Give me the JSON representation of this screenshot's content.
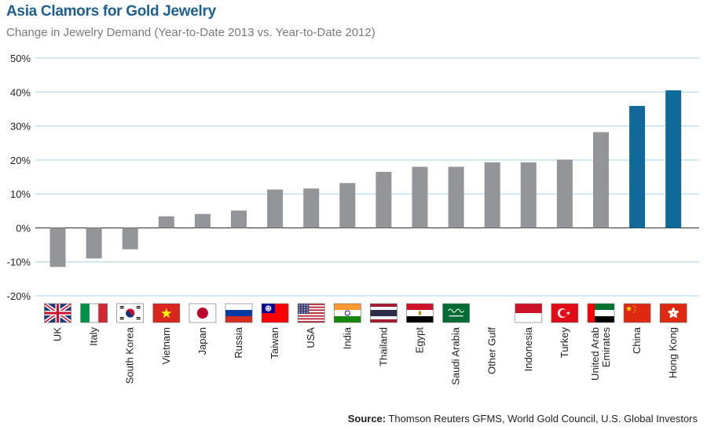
{
  "chart_data": {
    "type": "bar",
    "title": "Asia Clamors for Gold Jewelry",
    "subtitle": "Change in Jewelry Demand (Year-to-Date 2013 vs. Year-to-Date 2012)",
    "ylim": [
      -20,
      50
    ],
    "yticks": [
      -20,
      -10,
      0,
      10,
      20,
      30,
      40,
      50
    ],
    "ytick_suffix": "%",
    "grid": true,
    "categories": [
      "UK",
      "Italy",
      "South Korea",
      "Vietnam",
      "Japan",
      "Russia",
      "Taiwan",
      "USA",
      "India",
      "Thailand",
      "Egypt",
      "Saudi Arabia",
      "Other Gulf",
      "Indonesia",
      "Turkey",
      "United Arab Emirates",
      "China",
      "Hong Kong"
    ],
    "category_lines": [
      [
        "UK"
      ],
      [
        "Italy"
      ],
      [
        "South Korea"
      ],
      [
        "Vietnam"
      ],
      [
        "Japan"
      ],
      [
        "Russia"
      ],
      [
        "Taiwan"
      ],
      [
        "USA"
      ],
      [
        "India"
      ],
      [
        "Thailand"
      ],
      [
        "Egypt"
      ],
      [
        "Saudi Arabia"
      ],
      [
        "Other Gulf"
      ],
      [
        "Indonesia"
      ],
      [
        "Turkey"
      ],
      [
        "United Arab",
        "Emirates"
      ],
      [
        "China"
      ],
      [
        "Hong Kong"
      ]
    ],
    "values": [
      -11.5,
      -9,
      -6.3,
      3.4,
      4.1,
      5.1,
      11.3,
      11.6,
      13.2,
      16.5,
      18,
      18,
      19.3,
      19.3,
      20.1,
      28.2,
      35.9,
      40.5
    ],
    "highlight": [
      "China",
      "Hong Kong"
    ],
    "colors": {
      "bar": "#939598",
      "highlight": "#0f6a9a",
      "grid": "#a8d3e0",
      "zero_axis": "#3c3c3c"
    },
    "flags": [
      "uk-flag",
      "italy-flag",
      "south-korea-flag",
      "vietnam-flag",
      "japan-flag",
      "russia-flag",
      "taiwan-flag",
      "usa-flag",
      "india-flag",
      "thailand-flag",
      "egypt-flag",
      "saudi-arabia-flag",
      null,
      "indonesia-flag",
      "turkey-flag",
      "uae-flag",
      "china-flag",
      "hong-kong-flag"
    ]
  },
  "source": {
    "label": "Source:",
    "text": " Thomson Reuters GFMS, World Gold Council, U.S. Global Investors"
  }
}
